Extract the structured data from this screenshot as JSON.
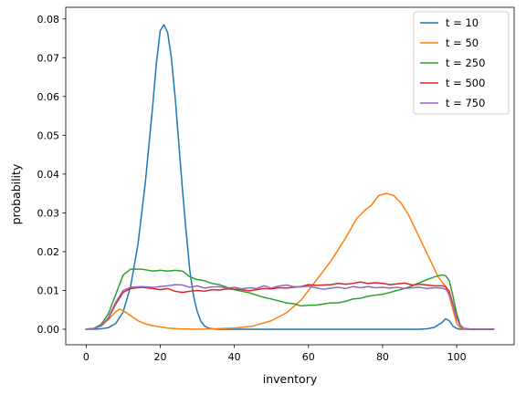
{
  "chart_data": {
    "type": "line",
    "title": "",
    "xlabel": "inventory",
    "ylabel": "probability",
    "xlim": [
      -5.5,
      115.5
    ],
    "ylim": [
      -0.004,
      0.083
    ],
    "xticks": [
      0,
      20,
      40,
      60,
      80,
      100
    ],
    "yticks": [
      0.0,
      0.01,
      0.02,
      0.03,
      0.04,
      0.05,
      0.06,
      0.07,
      0.08
    ],
    "ytick_labels": [
      "0.00",
      "0.01",
      "0.02",
      "0.03",
      "0.04",
      "0.05",
      "0.06",
      "0.07",
      "0.08"
    ],
    "grid": false,
    "legend_position": "top-right",
    "series": [
      {
        "name": "t = 10",
        "color": "#1f77b4",
        "points": [
          [
            0,
            0.0
          ],
          [
            2,
            0.0
          ],
          [
            4,
            0.0001
          ],
          [
            6,
            0.0004
          ],
          [
            8,
            0.0015
          ],
          [
            10,
            0.0045
          ],
          [
            12,
            0.011
          ],
          [
            14,
            0.022
          ],
          [
            16,
            0.038
          ],
          [
            18,
            0.058
          ],
          [
            19,
            0.069
          ],
          [
            20,
            0.077
          ],
          [
            21,
            0.0785
          ],
          [
            22,
            0.0765
          ],
          [
            23,
            0.07
          ],
          [
            24,
            0.06
          ],
          [
            25,
            0.048
          ],
          [
            26,
            0.036
          ],
          [
            27,
            0.025
          ],
          [
            28,
            0.015
          ],
          [
            29,
            0.0085
          ],
          [
            30,
            0.0045
          ],
          [
            31,
            0.002
          ],
          [
            32,
            0.0008
          ],
          [
            33,
            0.0003
          ],
          [
            35,
            0.0
          ],
          [
            40,
            0.0
          ],
          [
            60,
            0.0
          ],
          [
            80,
            0.0
          ],
          [
            90,
            0.0
          ],
          [
            92,
            0.0001
          ],
          [
            94,
            0.0005
          ],
          [
            96,
            0.0017
          ],
          [
            97,
            0.0027
          ],
          [
            98,
            0.0022
          ],
          [
            99,
            0.0008
          ],
          [
            100,
            0.0002
          ],
          [
            101,
            0.0
          ],
          [
            110,
            0.0
          ]
        ]
      },
      {
        "name": "t = 50",
        "color": "#ff7f0e",
        "points": [
          [
            0,
            0.0
          ],
          [
            2,
            0.0002
          ],
          [
            4,
            0.0008
          ],
          [
            6,
            0.0025
          ],
          [
            8,
            0.0045
          ],
          [
            9,
            0.0052
          ],
          [
            10,
            0.0048
          ],
          [
            12,
            0.0035
          ],
          [
            14,
            0.0022
          ],
          [
            16,
            0.0014
          ],
          [
            18,
            0.0009
          ],
          [
            20,
            0.0006
          ],
          [
            22,
            0.0003
          ],
          [
            25,
            0.0001
          ],
          [
            30,
            0.0
          ],
          [
            35,
            0.0001
          ],
          [
            40,
            0.0003
          ],
          [
            45,
            0.0008
          ],
          [
            50,
            0.0022
          ],
          [
            54,
            0.0042
          ],
          [
            58,
            0.0075
          ],
          [
            62,
            0.0125
          ],
          [
            66,
            0.0175
          ],
          [
            70,
            0.0235
          ],
          [
            73,
            0.0285
          ],
          [
            75,
            0.0305
          ],
          [
            77,
            0.032
          ],
          [
            79,
            0.0345
          ],
          [
            81,
            0.035
          ],
          [
            83,
            0.0345
          ],
          [
            85,
            0.0325
          ],
          [
            87,
            0.0295
          ],
          [
            89,
            0.0255
          ],
          [
            91,
            0.0215
          ],
          [
            93,
            0.0175
          ],
          [
            95,
            0.0135
          ],
          [
            97,
            0.011
          ],
          [
            98,
            0.0085
          ],
          [
            99,
            0.005
          ],
          [
            100,
            0.0015
          ],
          [
            101,
            0.0003
          ],
          [
            102,
            0.0
          ],
          [
            110,
            0.0
          ]
        ]
      },
      {
        "name": "t = 250",
        "color": "#2ca02c",
        "points": [
          [
            0,
            0.0
          ],
          [
            2,
            0.0002
          ],
          [
            4,
            0.0012
          ],
          [
            6,
            0.004
          ],
          [
            8,
            0.009
          ],
          [
            10,
            0.014
          ],
          [
            12,
            0.0155
          ],
          [
            15,
            0.0155
          ],
          [
            18,
            0.015
          ],
          [
            20,
            0.0152
          ],
          [
            22,
            0.015
          ],
          [
            24,
            0.0152
          ],
          [
            26,
            0.015
          ],
          [
            28,
            0.0135
          ],
          [
            30,
            0.0128
          ],
          [
            32,
            0.0125
          ],
          [
            34,
            0.0118
          ],
          [
            36,
            0.0115
          ],
          [
            38,
            0.0108
          ],
          [
            40,
            0.0102
          ],
          [
            42,
            0.0098
          ],
          [
            44,
            0.0094
          ],
          [
            46,
            0.0088
          ],
          [
            48,
            0.0082
          ],
          [
            50,
            0.0078
          ],
          [
            52,
            0.0073
          ],
          [
            54,
            0.0068
          ],
          [
            56,
            0.0066
          ],
          [
            58,
            0.006
          ],
          [
            60,
            0.0062
          ],
          [
            62,
            0.0062
          ],
          [
            64,
            0.0065
          ],
          [
            66,
            0.0068
          ],
          [
            68,
            0.0068
          ],
          [
            70,
            0.0072
          ],
          [
            72,
            0.0078
          ],
          [
            74,
            0.008
          ],
          [
            76,
            0.0085
          ],
          [
            78,
            0.0088
          ],
          [
            80,
            0.009
          ],
          [
            82,
            0.0095
          ],
          [
            84,
            0.01
          ],
          [
            86,
            0.0105
          ],
          [
            88,
            0.0112
          ],
          [
            90,
            0.012
          ],
          [
            92,
            0.0128
          ],
          [
            94,
            0.0135
          ],
          [
            96,
            0.014
          ],
          [
            97,
            0.0138
          ],
          [
            98,
            0.0125
          ],
          [
            99,
            0.0085
          ],
          [
            100,
            0.004
          ],
          [
            101,
            0.001
          ],
          [
            102,
            0.0002
          ],
          [
            104,
            0.0
          ],
          [
            110,
            0.0
          ]
        ]
      },
      {
        "name": "t = 500",
        "color": "#d62728",
        "points": [
          [
            0,
            0.0
          ],
          [
            2,
            0.0002
          ],
          [
            4,
            0.0008
          ],
          [
            6,
            0.0028
          ],
          [
            8,
            0.0065
          ],
          [
            10,
            0.0095
          ],
          [
            12,
            0.0105
          ],
          [
            15,
            0.0108
          ],
          [
            18,
            0.0105
          ],
          [
            20,
            0.0102
          ],
          [
            22,
            0.0105
          ],
          [
            24,
            0.0098
          ],
          [
            26,
            0.0095
          ],
          [
            28,
            0.0098
          ],
          [
            30,
            0.01
          ],
          [
            32,
            0.0098
          ],
          [
            34,
            0.0102
          ],
          [
            36,
            0.0101
          ],
          [
            38,
            0.0104
          ],
          [
            40,
            0.0103
          ],
          [
            42,
            0.0102
          ],
          [
            44,
            0.0099
          ],
          [
            46,
            0.0102
          ],
          [
            48,
            0.0105
          ],
          [
            50,
            0.0104
          ],
          [
            52,
            0.0107
          ],
          [
            54,
            0.0106
          ],
          [
            56,
            0.0108
          ],
          [
            58,
            0.011
          ],
          [
            60,
            0.0115
          ],
          [
            62,
            0.0113
          ],
          [
            64,
            0.0114
          ],
          [
            66,
            0.0115
          ],
          [
            68,
            0.0118
          ],
          [
            70,
            0.0116
          ],
          [
            72,
            0.0118
          ],
          [
            74,
            0.0122
          ],
          [
            76,
            0.0118
          ],
          [
            78,
            0.012
          ],
          [
            80,
            0.0118
          ],
          [
            82,
            0.0115
          ],
          [
            84,
            0.0117
          ],
          [
            86,
            0.0119
          ],
          [
            88,
            0.0114
          ],
          [
            90,
            0.0116
          ],
          [
            92,
            0.0114
          ],
          [
            94,
            0.0112
          ],
          [
            96,
            0.0112
          ],
          [
            97,
            0.011
          ],
          [
            98,
            0.0098
          ],
          [
            99,
            0.0065
          ],
          [
            100,
            0.003
          ],
          [
            101,
            0.0008
          ],
          [
            102,
            0.0002
          ],
          [
            104,
            0.0
          ],
          [
            110,
            0.0
          ]
        ]
      },
      {
        "name": "t = 750",
        "color": "#9467bd",
        "points": [
          [
            0,
            0.0
          ],
          [
            2,
            0.0002
          ],
          [
            4,
            0.0008
          ],
          [
            6,
            0.003
          ],
          [
            8,
            0.007
          ],
          [
            10,
            0.01
          ],
          [
            12,
            0.0108
          ],
          [
            15,
            0.011
          ],
          [
            18,
            0.0108
          ],
          [
            20,
            0.011
          ],
          [
            22,
            0.0112
          ],
          [
            24,
            0.0115
          ],
          [
            26,
            0.0114
          ],
          [
            28,
            0.0108
          ],
          [
            30,
            0.0112
          ],
          [
            32,
            0.0106
          ],
          [
            34,
            0.0109
          ],
          [
            36,
            0.011
          ],
          [
            38,
            0.0106
          ],
          [
            40,
            0.0108
          ],
          [
            42,
            0.0104
          ],
          [
            44,
            0.0107
          ],
          [
            46,
            0.0105
          ],
          [
            48,
            0.0112
          ],
          [
            50,
            0.0106
          ],
          [
            52,
            0.0111
          ],
          [
            54,
            0.0114
          ],
          [
            56,
            0.011
          ],
          [
            58,
            0.0109
          ],
          [
            60,
            0.0111
          ],
          [
            62,
            0.0107
          ],
          [
            64,
            0.0103
          ],
          [
            66,
            0.0106
          ],
          [
            68,
            0.0108
          ],
          [
            70,
            0.0105
          ],
          [
            72,
            0.011
          ],
          [
            74,
            0.0107
          ],
          [
            76,
            0.011
          ],
          [
            78,
            0.0107
          ],
          [
            80,
            0.0108
          ],
          [
            82,
            0.0106
          ],
          [
            84,
            0.0108
          ],
          [
            86,
            0.0105
          ],
          [
            88,
            0.0107
          ],
          [
            90,
            0.0108
          ],
          [
            92,
            0.0105
          ],
          [
            94,
            0.0107
          ],
          [
            96,
            0.0106
          ],
          [
            97,
            0.0103
          ],
          [
            98,
            0.0092
          ],
          [
            99,
            0.0062
          ],
          [
            100,
            0.0028
          ],
          [
            101,
            0.0008
          ],
          [
            102,
            0.0002
          ],
          [
            104,
            0.0
          ],
          [
            110,
            0.0
          ]
        ]
      }
    ]
  }
}
